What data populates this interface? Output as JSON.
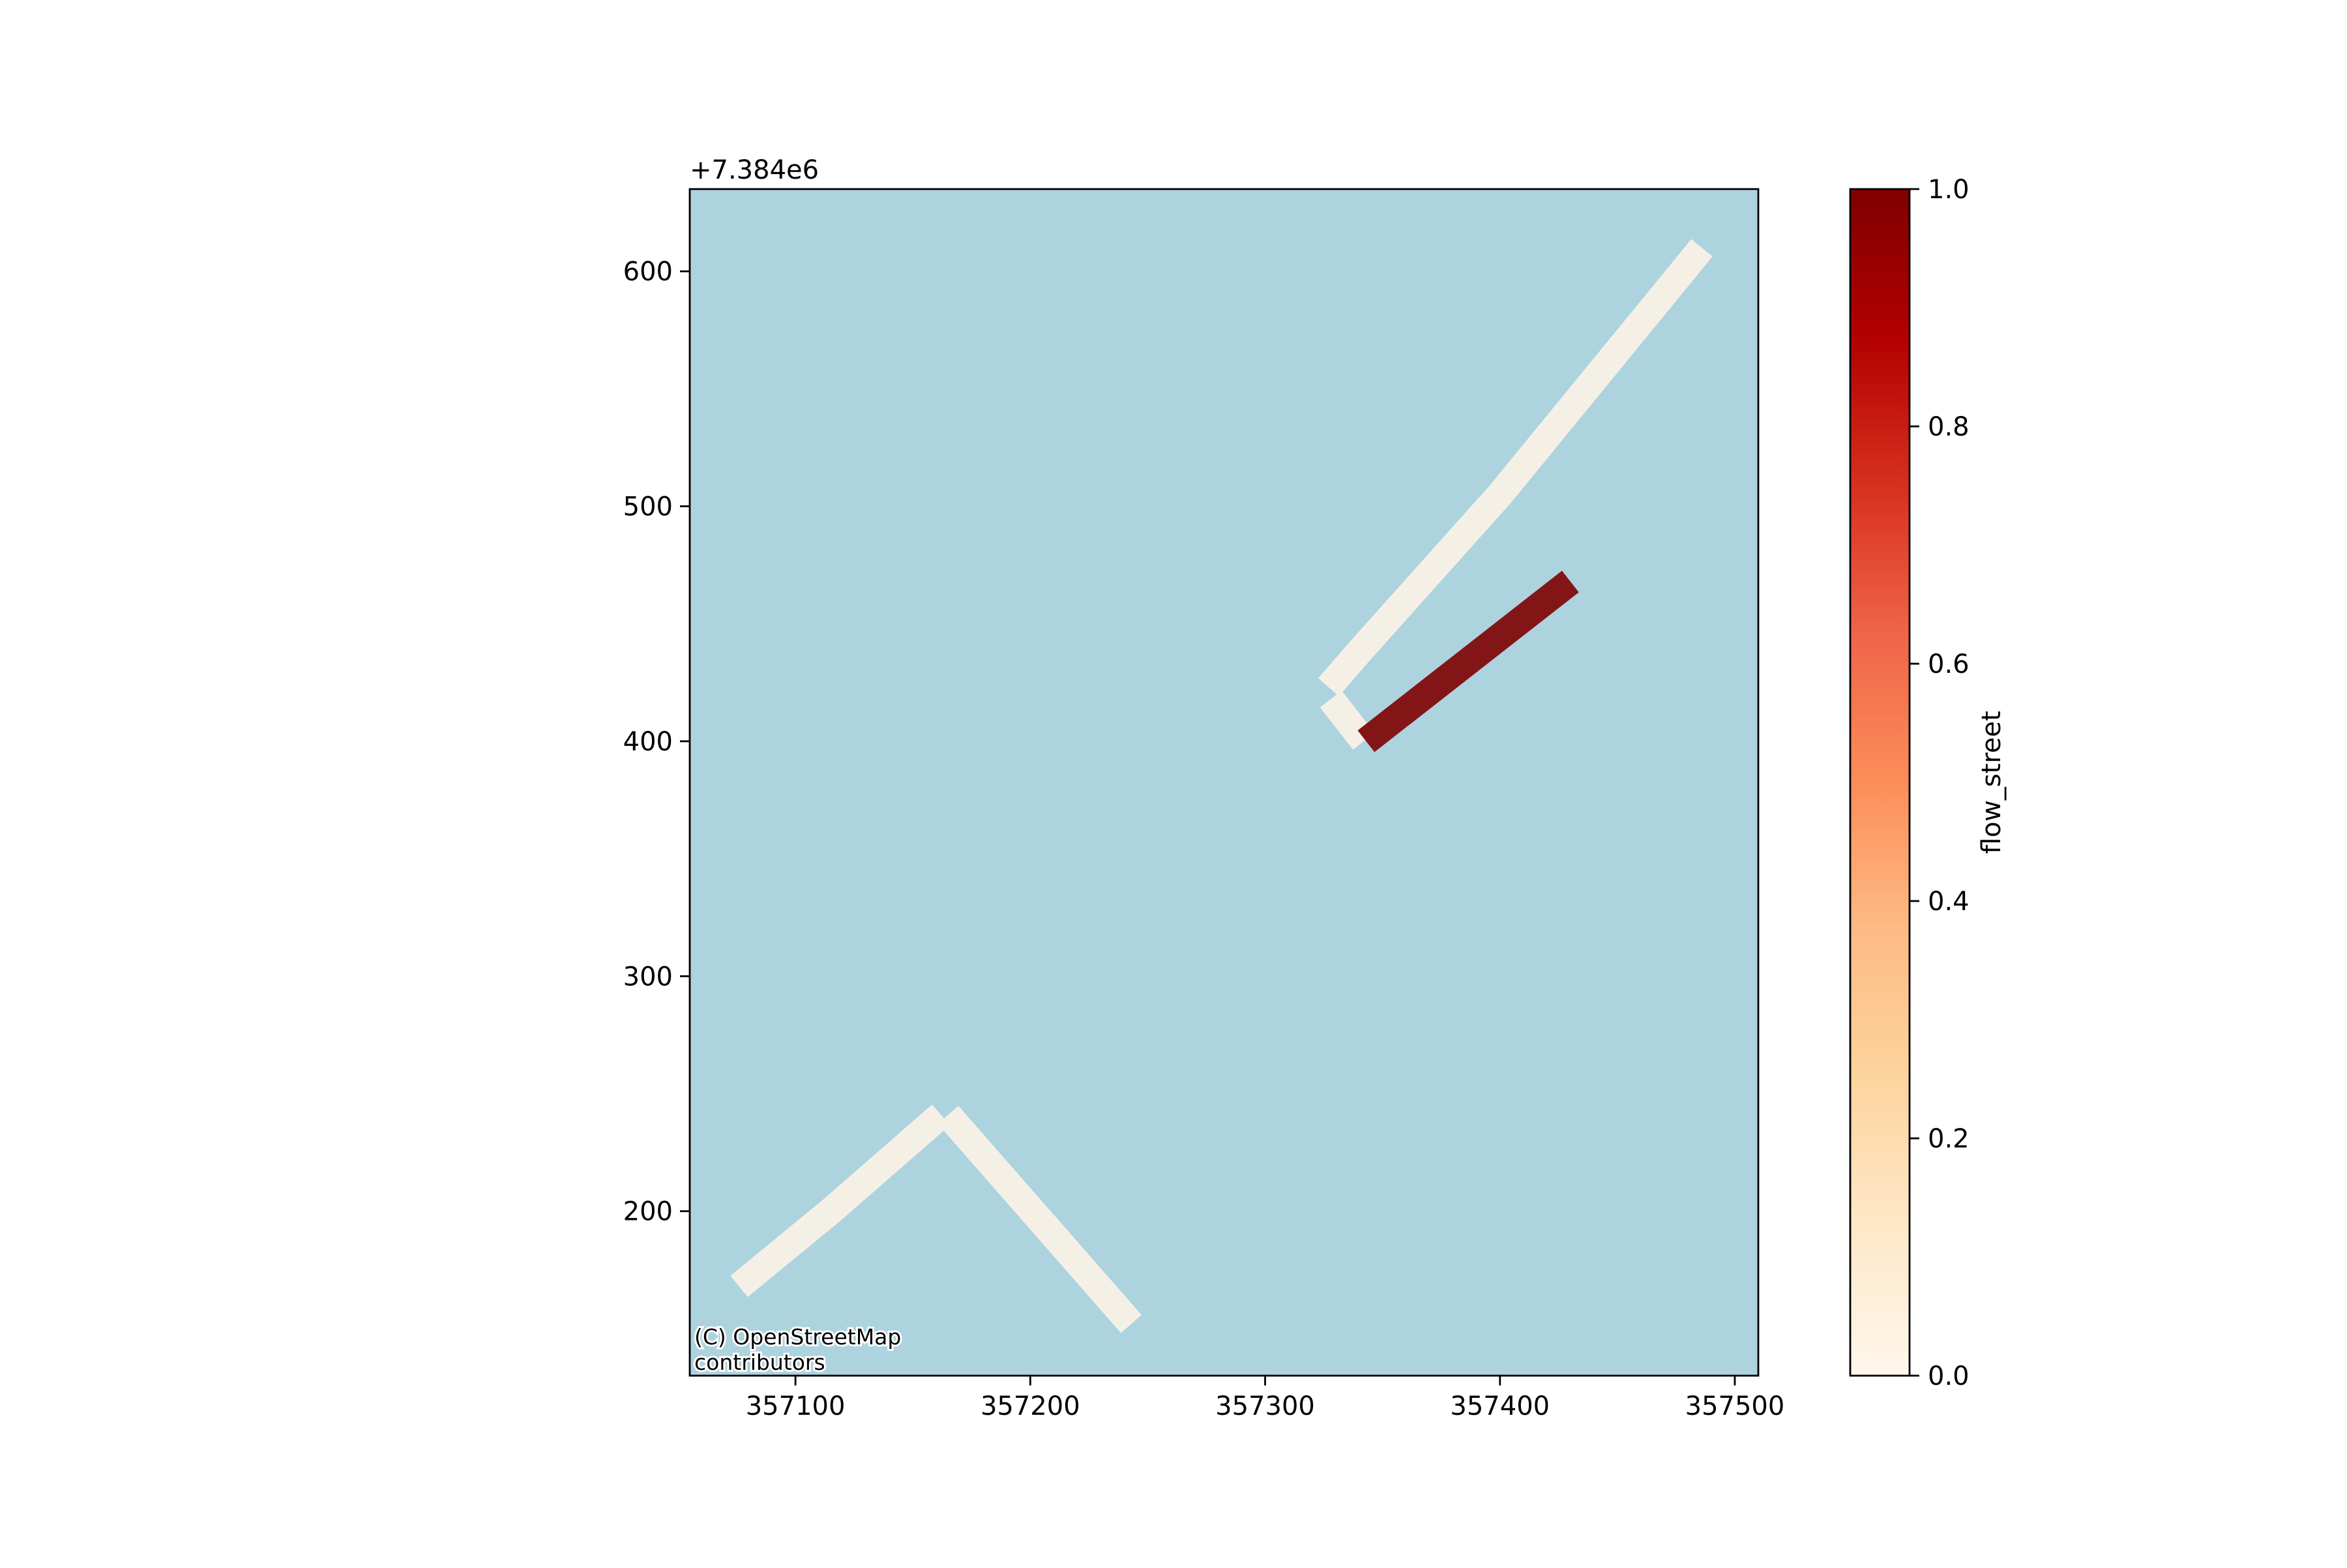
{
  "chart_data": {
    "type": "map",
    "x_ticks": [
      357100,
      357200,
      357300,
      357400,
      357500
    ],
    "y_ticks": [
      200,
      300,
      400,
      500,
      600
    ],
    "x_tick_labels": [
      "357100",
      "357200",
      "357300",
      "357400",
      "357500"
    ],
    "y_tick_labels": [
      "200",
      "300",
      "400",
      "500",
      "600"
    ],
    "y_offset_label": "+7.384e6",
    "xlim": [
      357055,
      357510
    ],
    "ylim": [
      130,
      635
    ],
    "background_color": "#add3df",
    "attribution": [
      "(C) OpenStreetMap",
      "contributors"
    ],
    "colorbar": {
      "label": "flow_street",
      "ticks": [
        0.0,
        0.2,
        0.4,
        0.6,
        0.8,
        1.0
      ],
      "tick_labels": [
        "0.0",
        "0.2",
        "0.4",
        "0.6",
        "0.8",
        "1.0"
      ],
      "range": [
        0,
        1
      ],
      "colormap": "OrRd",
      "stops": [
        "#fff7ec",
        "#fee8c8",
        "#fdd49e",
        "#fdbb84",
        "#fc8d59",
        "#ef6548",
        "#d7301f",
        "#b30000",
        "#7f0000"
      ]
    },
    "series": [
      {
        "flow": 0.0,
        "color": "#f5f0e6",
        "points": [
          [
            357076,
            168
          ],
          [
            357115,
            200
          ],
          [
            357162,
            241
          ]
        ]
      },
      {
        "flow": 0.0,
        "color": "#f5f0e6",
        "points": [
          [
            357165,
            241
          ],
          [
            357243,
            152
          ]
        ]
      },
      {
        "flow": 0.0,
        "color": "#f5f0e6",
        "points": [
          [
            357327,
            423
          ],
          [
            357340,
            438
          ],
          [
            357400,
            505
          ],
          [
            357486,
            610
          ]
        ]
      },
      {
        "flow": 0.0,
        "color": "#f5f0e6",
        "points": [
          [
            357328,
            418
          ],
          [
            357342,
            400
          ]
        ]
      },
      {
        "flow": 1.0,
        "color": "#831517",
        "points": [
          [
            357343,
            400
          ],
          [
            357430,
            468
          ]
        ]
      }
    ]
  }
}
